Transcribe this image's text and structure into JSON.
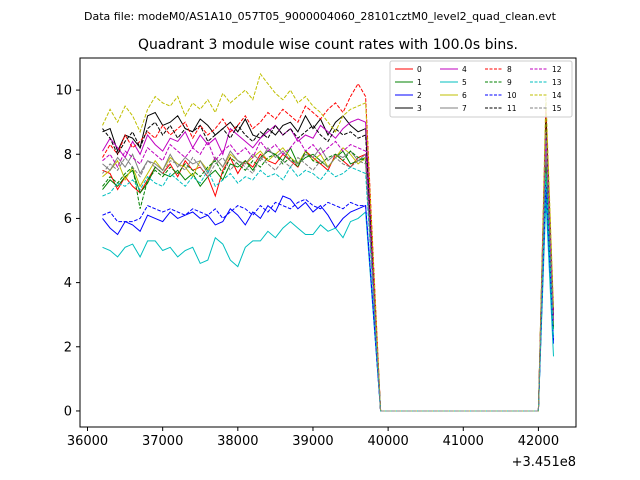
{
  "suptitle": "Data file: modeM0/AS1A10_057T05_9000004060_28101cztM0_level2_quad_clean.evt",
  "chart_data": {
    "type": "line",
    "title": "Quadrant 3 module wise count rates with 100.0s bins.",
    "xlabel": "",
    "ylabel": "",
    "x_offset_label": "+3.451e8",
    "xlim": [
      35900,
      42500
    ],
    "ylim": [
      -0.5,
      11.0
    ],
    "xticks": [
      36000,
      37000,
      38000,
      39000,
      40000,
      41000,
      42000
    ],
    "xtick_labels": [
      "36000",
      "37000",
      "38000",
      "39000",
      "40000",
      "41000",
      "42000"
    ],
    "yticks": [
      0,
      2,
      4,
      6,
      8,
      10
    ],
    "ytick_labels": [
      "0",
      "2",
      "4",
      "6",
      "8",
      "10"
    ],
    "grid": false,
    "legend_position": "top-right",
    "legend_columns": 4,
    "segment_1": {
      "x_start": 36200,
      "x_end": 39700,
      "step": 100
    },
    "drop_points": [
      [
        39800,
        null
      ],
      [
        39900,
        0.0
      ],
      [
        40000,
        0.0
      ]
    ],
    "zero_segment": {
      "x_start": 39900,
      "x_end": 42000,
      "value": 0.0
    },
    "spike_points": [
      42100,
      42200
    ],
    "series": [
      {
        "name": "0",
        "color": "#ff0000",
        "dash": "solid",
        "spike": [
          8.5,
          3.0
        ],
        "values": [
          7.5,
          7.4,
          6.9,
          7.3,
          7.0,
          6.8,
          7.2,
          7.6,
          7.4,
          7.7,
          7.3,
          7.8,
          7.5,
          7.6,
          7.3,
          6.7,
          7.5,
          7.9,
          7.4,
          7.8,
          7.6,
          8.0,
          7.8,
          7.7,
          8.0,
          7.8,
          7.6,
          8.1,
          7.9,
          7.7,
          7.5,
          8.0,
          7.8,
          7.6,
          7.9,
          8.0
        ]
      },
      {
        "name": "1",
        "color": "#008000",
        "dash": "solid",
        "spike": [
          7.8,
          2.6
        ],
        "values": [
          6.9,
          7.2,
          7.0,
          7.3,
          7.5,
          6.8,
          7.1,
          7.6,
          7.4,
          7.3,
          7.5,
          7.2,
          7.4,
          7.0,
          7.3,
          7.5,
          7.2,
          7.7,
          7.6,
          7.8,
          7.5,
          7.9,
          8.1,
          8.0,
          7.8,
          8.2,
          7.7,
          7.9,
          8.0,
          7.8,
          7.6,
          7.9,
          8.1,
          7.7,
          7.8,
          7.9
        ]
      },
      {
        "name": "2",
        "color": "#0000ff",
        "dash": "solid",
        "spike": [
          7.0,
          2.1
        ],
        "values": [
          6.0,
          5.7,
          5.5,
          5.9,
          5.8,
          5.6,
          6.1,
          6.0,
          5.9,
          6.2,
          6.0,
          6.1,
          6.2,
          6.0,
          6.1,
          5.8,
          5.9,
          6.3,
          6.1,
          5.8,
          6.2,
          6.0,
          6.4,
          6.2,
          6.7,
          6.6,
          6.3,
          6.5,
          6.2,
          6.4,
          6.1,
          5.7,
          6.0,
          6.2,
          6.3,
          6.4
        ]
      },
      {
        "name": "3",
        "color": "#000000",
        "dash": "solid",
        "spike": [
          9.3,
          2.8
        ],
        "values": [
          8.7,
          8.8,
          8.1,
          8.6,
          8.5,
          8.2,
          9.2,
          9.3,
          8.9,
          9.0,
          9.2,
          8.8,
          8.7,
          9.1,
          8.9,
          8.6,
          8.8,
          9.0,
          8.7,
          9.1,
          8.6,
          8.5,
          8.8,
          8.6,
          8.9,
          9.0,
          8.7,
          9.2,
          8.8,
          9.1,
          8.6,
          9.0,
          9.2,
          8.9,
          8.7,
          8.8
        ]
      },
      {
        "name": "4",
        "color": "#bf00bf",
        "dash": "solid",
        "spike": [
          8.8,
          2.9
        ],
        "values": [
          8.1,
          8.5,
          8.2,
          7.9,
          8.4,
          8.0,
          8.6,
          8.3,
          8.1,
          8.5,
          8.4,
          8.7,
          8.2,
          8.6,
          8.3,
          8.5,
          8.0,
          8.8,
          8.6,
          8.4,
          8.2,
          8.5,
          8.7,
          8.9,
          8.6,
          8.8,
          8.4,
          8.6,
          8.5,
          8.9,
          8.7,
          8.5,
          8.8,
          9.0,
          9.1,
          9.0
        ]
      },
      {
        "name": "5",
        "color": "#00bfbf",
        "dash": "solid",
        "spike": [
          6.6,
          1.7
        ],
        "values": [
          5.1,
          5.0,
          4.8,
          5.1,
          5.2,
          4.8,
          5.3,
          5.3,
          5.0,
          5.1,
          4.8,
          5.0,
          5.1,
          4.6,
          4.7,
          5.4,
          5.2,
          4.7,
          4.5,
          5.1,
          5.3,
          5.3,
          5.6,
          5.4,
          5.7,
          5.9,
          5.7,
          5.5,
          5.5,
          5.8,
          5.6,
          5.7,
          5.4,
          5.9,
          6.0,
          6.2
        ]
      },
      {
        "name": "6",
        "color": "#bfbf00",
        "dash": "solid",
        "spike": [
          8.9,
          2.7
        ],
        "values": [
          7.3,
          7.5,
          7.8,
          7.2,
          7.6,
          7.0,
          7.4,
          7.8,
          7.5,
          7.9,
          7.7,
          7.6,
          7.3,
          7.8,
          7.5,
          7.9,
          7.6,
          8.0,
          7.8,
          7.7,
          7.9,
          8.1,
          7.8,
          8.0,
          8.2,
          7.9,
          7.7,
          8.1,
          7.8,
          8.0,
          7.6,
          7.9,
          8.2,
          8.0,
          7.7,
          7.9
        ]
      },
      {
        "name": "7",
        "color": "#808080",
        "dash": "solid",
        "spike": [
          8.2,
          2.8
        ],
        "values": [
          7.7,
          7.5,
          7.9,
          7.6,
          8.0,
          7.4,
          7.8,
          7.7,
          7.5,
          8.0,
          7.6,
          7.9,
          7.7,
          7.8,
          7.4,
          7.9,
          7.6,
          8.1,
          7.8,
          7.7,
          8.0,
          7.8,
          8.2,
          7.9,
          8.1,
          7.8,
          7.7,
          8.0,
          7.9,
          8.2,
          7.8,
          8.0,
          7.9,
          8.1,
          7.8,
          8.0
        ]
      },
      {
        "name": "8",
        "color": "#ff0000",
        "dash": "dashed",
        "spike": [
          9.4,
          3.1
        ],
        "values": [
          7.9,
          8.3,
          8.0,
          8.6,
          8.2,
          8.4,
          8.7,
          8.5,
          8.9,
          8.6,
          8.8,
          9.0,
          8.5,
          8.9,
          8.6,
          8.8,
          9.1,
          8.7,
          8.9,
          9.2,
          8.8,
          9.0,
          9.3,
          9.1,
          9.4,
          9.2,
          9.0,
          9.5,
          9.3,
          9.1,
          9.4,
          9.6,
          9.3,
          9.8,
          10.2,
          9.8
        ]
      },
      {
        "name": "9",
        "color": "#008000",
        "dash": "dashed",
        "spike": [
          7.6,
          2.5
        ],
        "values": [
          7.0,
          7.3,
          7.1,
          7.4,
          7.6,
          6.3,
          7.2,
          7.5,
          7.3,
          7.6,
          7.4,
          7.7,
          7.5,
          7.3,
          7.6,
          7.8,
          7.4,
          7.9,
          7.7,
          7.5,
          7.8,
          7.6,
          7.9,
          8.0,
          7.7,
          7.9,
          7.6,
          8.1,
          7.8,
          7.7,
          7.9,
          8.0,
          7.8,
          8.1,
          7.9,
          7.8
        ]
      },
      {
        "name": "10",
        "color": "#0000ff",
        "dash": "dashed",
        "spike": [
          7.1,
          2.2
        ],
        "values": [
          6.1,
          6.2,
          5.9,
          5.9,
          5.9,
          6.0,
          6.4,
          6.3,
          6.2,
          6.3,
          6.2,
          6.1,
          6.3,
          6.2,
          6.1,
          6.3,
          6.0,
          6.2,
          6.4,
          6.3,
          6.1,
          6.4,
          6.2,
          6.5,
          6.4,
          6.3,
          6.5,
          6.6,
          6.4,
          6.3,
          6.5,
          6.4,
          6.3,
          6.5,
          6.4,
          6.4
        ]
      },
      {
        "name": "11",
        "color": "#000000",
        "dash": "dashed",
        "spike": [
          9.0,
          2.9
        ],
        "values": [
          8.8,
          8.5,
          8.0,
          8.4,
          8.7,
          8.2,
          8.8,
          9.0,
          8.6,
          8.9,
          8.5,
          8.8,
          8.7,
          8.9,
          8.4,
          8.6,
          8.8,
          8.5,
          8.9,
          8.6,
          8.4,
          8.7,
          8.5,
          8.9,
          8.6,
          8.8,
          8.5,
          8.7,
          8.9,
          8.6,
          8.4,
          8.8,
          8.6,
          8.7,
          8.5,
          8.6
        ]
      },
      {
        "name": "12",
        "color": "#bf00bf",
        "dash": "dashed",
        "spike": [
          8.6,
          2.8
        ],
        "values": [
          7.8,
          8.0,
          7.6,
          8.1,
          7.9,
          7.7,
          8.2,
          8.0,
          7.8,
          8.3,
          8.1,
          7.9,
          8.2,
          8.0,
          8.4,
          7.8,
          8.1,
          8.3,
          8.0,
          8.2,
          7.9,
          8.4,
          8.1,
          8.3,
          8.0,
          8.2,
          8.5,
          8.1,
          8.3,
          8.0,
          8.2,
          8.4,
          8.1,
          8.3,
          8.2,
          8.1
        ]
      },
      {
        "name": "13",
        "color": "#00bfbf",
        "dash": "dashed",
        "spike": [
          7.4,
          2.3
        ],
        "values": [
          6.7,
          6.8,
          7.1,
          7.0,
          7.2,
          6.9,
          7.3,
          7.1,
          7.0,
          7.4,
          7.2,
          7.0,
          7.3,
          7.1,
          7.5,
          7.0,
          7.2,
          7.4,
          7.1,
          7.3,
          7.2,
          7.5,
          7.3,
          7.4,
          7.2,
          7.6,
          7.3,
          7.5,
          7.4,
          7.2,
          7.5,
          7.3,
          7.4,
          7.6,
          7.5,
          7.4
        ]
      },
      {
        "name": "14",
        "color": "#bfbf00",
        "dash": "dashed",
        "spike": [
          9.8,
          3.2
        ],
        "values": [
          8.9,
          9.4,
          9.0,
          9.5,
          9.2,
          8.7,
          9.4,
          9.8,
          9.6,
          9.5,
          9.8,
          9.2,
          9.6,
          9.4,
          9.7,
          9.3,
          9.9,
          9.6,
          9.8,
          10.0,
          9.7,
          10.5,
          10.2,
          9.9,
          9.7,
          10.0,
          9.6,
          9.8,
          9.5,
          9.3,
          9.0,
          8.7,
          9.2,
          9.4,
          9.5,
          9.6
        ]
      },
      {
        "name": "15",
        "color": "#808080",
        "dash": "dashed",
        "spike": [
          8.7,
          2.8
        ],
        "values": [
          7.4,
          7.7,
          7.5,
          7.9,
          7.6,
          7.3,
          7.8,
          7.6,
          7.4,
          7.8,
          7.7,
          7.5,
          7.9,
          7.6,
          7.3,
          7.7,
          7.9,
          7.5,
          7.8,
          7.6,
          7.4,
          7.9,
          7.7,
          7.5,
          7.8,
          7.6,
          7.9,
          7.7,
          7.5,
          7.8,
          7.6,
          7.9,
          7.7,
          7.6,
          7.8,
          7.7
        ]
      }
    ]
  }
}
